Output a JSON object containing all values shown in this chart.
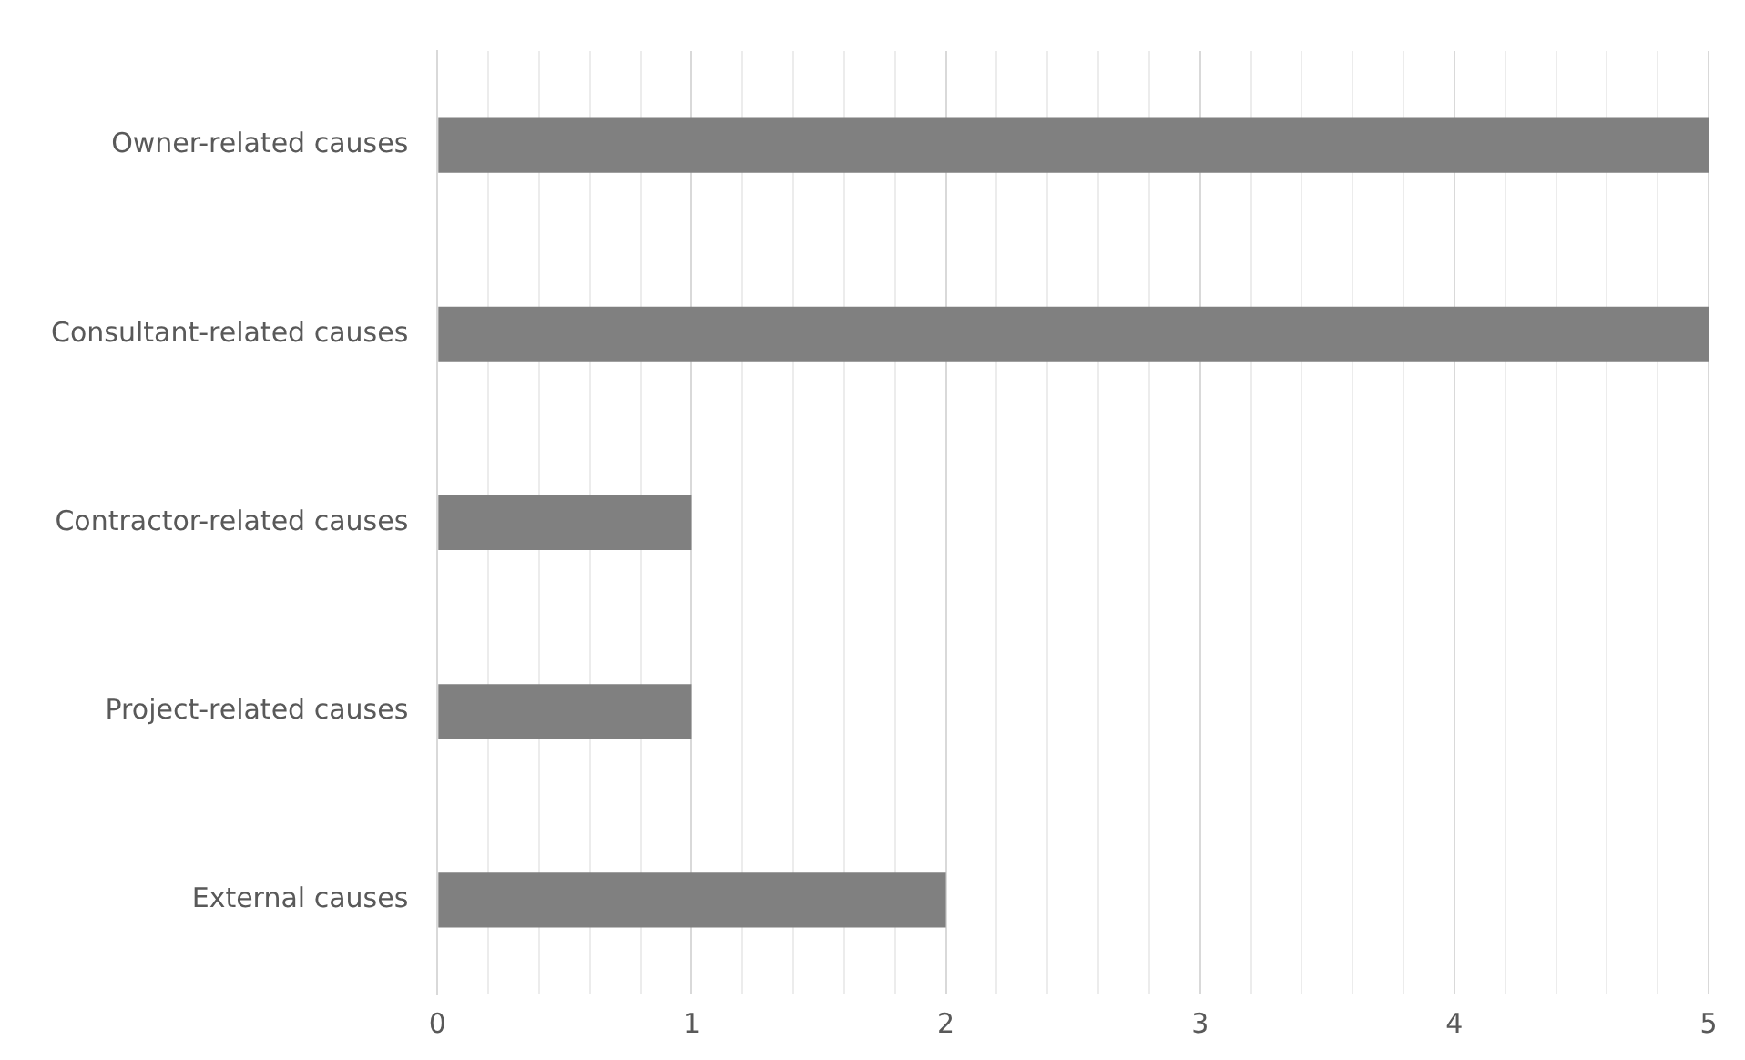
{
  "chart_data": {
    "type": "bar",
    "orientation": "horizontal",
    "categories": [
      "Owner-related causes",
      "Consultant-related causes",
      "Contractor-related causes",
      "Project-related causes",
      "External causes"
    ],
    "values": [
      5,
      5,
      1,
      1,
      2
    ],
    "color": "#808080",
    "xlim": [
      0,
      5
    ],
    "xticks": [
      0,
      {
        "value": 0.2,
        "label": null
      },
      {
        "value": 0.4,
        "label": null
      },
      {
        "value": 0.6,
        "label": null
      },
      {
        "value": 0.8,
        "label": null
      },
      1,
      {
        "value": 1.2,
        "label": null
      },
      {
        "value": 1.4,
        "label": null
      },
      {
        "value": 1.6,
        "label": null
      },
      {
        "value": 1.8,
        "label": null
      },
      2,
      {
        "value": 2.2,
        "label": null
      },
      {
        "value": 2.4,
        "label": null
      },
      {
        "value": 2.6,
        "label": null
      },
      {
        "value": 2.8,
        "label": null
      },
      3,
      {
        "value": 3.2,
        "label": null
      },
      {
        "value": 3.4,
        "label": null
      },
      {
        "value": 3.6,
        "label": null
      },
      {
        "value": 3.8,
        "label": null
      },
      4,
      {
        "value": 4.2,
        "label": null
      },
      {
        "value": 4.4,
        "label": null
      },
      {
        "value": 4.6,
        "label": null
      },
      {
        "value": 4.8,
        "label": null
      },
      5
    ],
    "grid": "x"
  }
}
